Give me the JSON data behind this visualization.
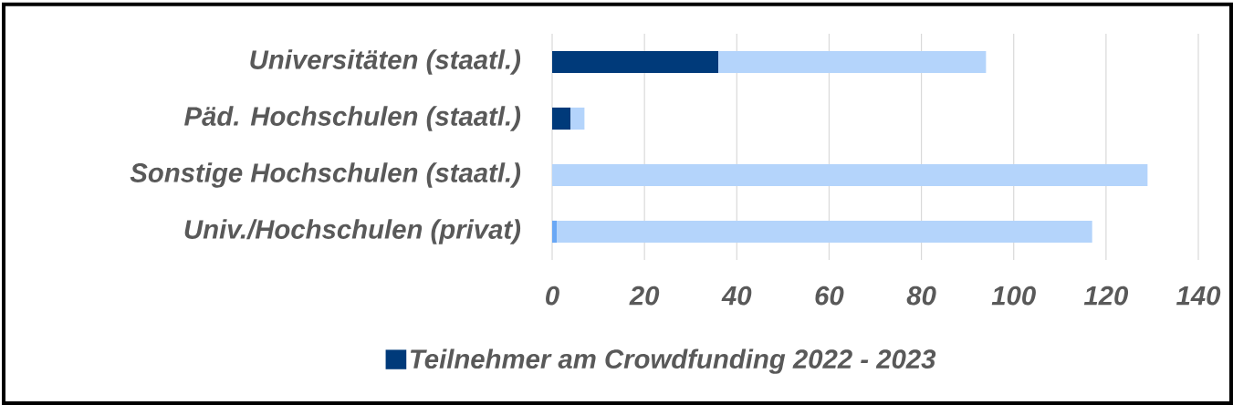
{
  "chart_data": {
    "type": "bar",
    "orientation": "horizontal",
    "stacked": true,
    "categories": [
      "Universitäten (staatl.)",
      "Päd. Hochschulen (staatl.)",
      "Sonstige Hochschulen (staatl.)",
      "Univ./Hochschulen (privat)"
    ],
    "series": [
      {
        "name": "Teilnehmer am Crowdfunding 2022 - 2023",
        "color": "#003a7a",
        "colors": [
          "#003a7a",
          "#003a7a",
          "#003a7a",
          "#6aa8f5"
        ],
        "values": [
          36,
          4,
          0,
          1
        ]
      },
      {
        "color": "#b4d4fb",
        "values": [
          58,
          3,
          129,
          116
        ]
      }
    ],
    "xlim": [
      0,
      140
    ],
    "xticks": [
      0,
      20,
      40,
      60,
      80,
      100,
      120,
      140
    ],
    "grid": "x",
    "legend": "bottom"
  }
}
